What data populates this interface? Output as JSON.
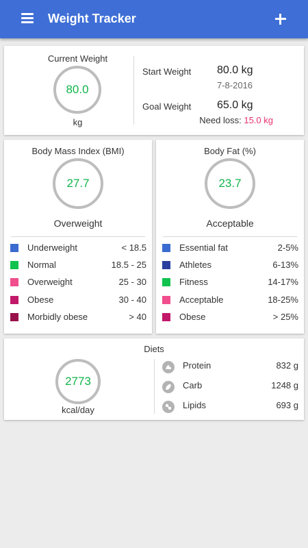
{
  "header": {
    "title": "Weight Tracker",
    "menu_icon": "menu-icon",
    "add_icon": "plus-icon"
  },
  "current_weight": {
    "label": "Current Weight",
    "value": "80.0",
    "unit": "kg",
    "start_label": "Start Weight",
    "start_value": "80.0 kg",
    "start_date": "7-8-2016",
    "goal_label": "Goal Weight",
    "goal_value": "65.0 kg",
    "need_loss_label": "Need loss:",
    "need_loss_value": "15.0 kg"
  },
  "bmi": {
    "title": "Body Mass Index (BMI)",
    "value": "27.7",
    "status": "Overweight",
    "rows": [
      {
        "label": "Underweight",
        "range": "< 18.5",
        "color": "#3a6bd0"
      },
      {
        "label": "Normal",
        "range": "18.5 - 25",
        "color": "#10c24e"
      },
      {
        "label": "Overweight",
        "range": "25 - 30",
        "color": "#f04e8c"
      },
      {
        "label": "Obese",
        "range": "30 - 40",
        "color": "#c2186a"
      },
      {
        "label": "Morbidly obese",
        "range": "> 40",
        "color": "#99114a"
      }
    ]
  },
  "body_fat": {
    "title": "Body Fat (%)",
    "value": "23.7",
    "status": "Acceptable",
    "rows": [
      {
        "label": "Essential fat",
        "range": "2-5%",
        "color": "#3a6bd0"
      },
      {
        "label": "Athletes",
        "range": "6-13%",
        "color": "#2a3f9e"
      },
      {
        "label": "Fitness",
        "range": "14-17%",
        "color": "#10c24e"
      },
      {
        "label": "Acceptable",
        "range": "18-25%",
        "color": "#f04e8c"
      },
      {
        "label": "Obese",
        "range": "> 25%",
        "color": "#c2186a"
      }
    ]
  },
  "diets": {
    "title": "Diets",
    "value": "2773",
    "unit": "kcal/day",
    "rows": [
      {
        "label": "Protein",
        "value": "832 g",
        "icon": "arm-icon"
      },
      {
        "label": "Carb",
        "value": "1248 g",
        "icon": "grain-icon"
      },
      {
        "label": "Lipids",
        "value": "693 g",
        "icon": "fat-icon"
      }
    ]
  },
  "colors": {
    "appbar": "#3f6fd6",
    "ring": "#bdbdbd",
    "value": "#10b44a",
    "need_loss": "#e8336f"
  }
}
